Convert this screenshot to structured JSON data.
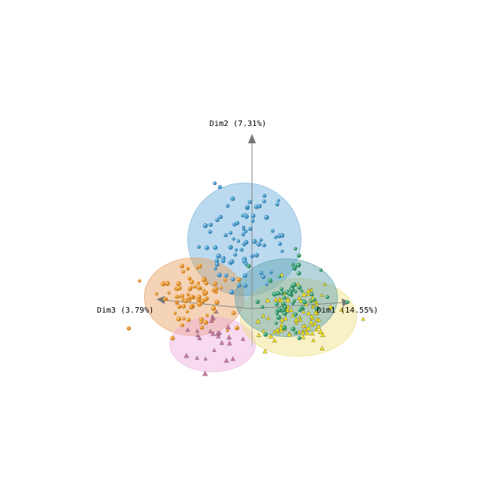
{
  "chart_data": {
    "type": "scatter",
    "title": "",
    "axes": {
      "dim1": {
        "label": "Dim1 (14.55%)",
        "range": [
          -4,
          4
        ]
      },
      "dim2": {
        "label": "Dim2 (7.31%)",
        "range": [
          -4,
          4
        ]
      },
      "dim3": {
        "label": "Dim3 (3.79%)",
        "range": [
          -4,
          4
        ]
      }
    },
    "grid": false,
    "legend": "none",
    "groups": [
      {
        "color": "#3a94c8",
        "ellipse_color": "#6aaedb",
        "marker": "sphere",
        "center": [
          -0.6,
          1.7,
          -0.3
        ],
        "radii": [
          1.8,
          1.45,
          1.0
        ],
        "count": 80
      },
      {
        "color": "#e8901e",
        "ellipse_color": "#e79e5e",
        "marker": "sphere",
        "center": [
          -1.9,
          0.4,
          0.6
        ],
        "radii": [
          1.55,
          1.0,
          1.0
        ],
        "count": 80
      },
      {
        "color": "#d07aa8",
        "ellipse_color": "#eeaede",
        "marker": "cone",
        "center": [
          -1.3,
          -0.8,
          0.4
        ],
        "radii": [
          1.35,
          0.7,
          0.8
        ],
        "count": 25
      },
      {
        "color": "#f2e21a",
        "ellipse_color": "#efe080",
        "marker": "cone",
        "center": [
          1.6,
          -0.3,
          -0.4
        ],
        "radii": [
          1.85,
          1.0,
          1.0
        ],
        "count": 90
      },
      {
        "color": "#2a9a66",
        "ellipse_color": "#5aa0b0",
        "marker": "sphere",
        "center": [
          0.9,
          0.2,
          -0.6
        ],
        "radii": [
          1.6,
          1.0,
          1.0
        ],
        "count": 60
      }
    ]
  }
}
